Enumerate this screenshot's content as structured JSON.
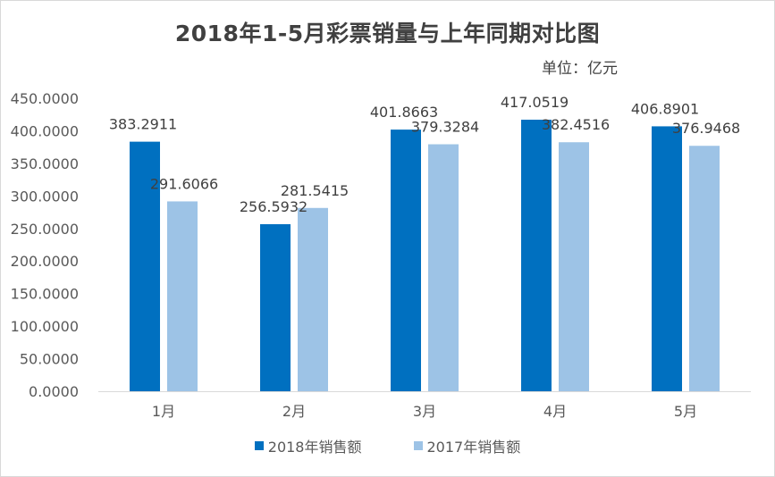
{
  "chart_data": {
    "type": "bar",
    "title": "2018年1-5月彩票销量与上年同期对比图",
    "unit_label": "单位：亿元",
    "categories": [
      "1月",
      "2月",
      "3月",
      "4月",
      "5月"
    ],
    "series": [
      {
        "name": "2018年销售额",
        "color": "#0070c0",
        "values": [
          383.2911,
          256.5932,
          401.8663,
          417.0519,
          406.8901
        ],
        "labels": [
          "383.2911",
          "256.5932",
          "401.8663",
          "417.0519",
          "406.8901"
        ]
      },
      {
        "name": "2017年销售额",
        "color": "#9dc3e6",
        "values": [
          291.6066,
          281.5415,
          379.3284,
          382.4516,
          376.9468
        ],
        "labels": [
          "291.6066",
          "281.5415",
          "379.3284",
          "382.4516",
          "376.9468"
        ]
      }
    ],
    "y_ticks": [
      "0.0000",
      "50.0000",
      "100.0000",
      "150.0000",
      "200.0000",
      "250.0000",
      "300.0000",
      "350.0000",
      "400.0000",
      "450.0000"
    ],
    "ylim": [
      0,
      450
    ],
    "grid": false,
    "legend_position": "bottom"
  }
}
